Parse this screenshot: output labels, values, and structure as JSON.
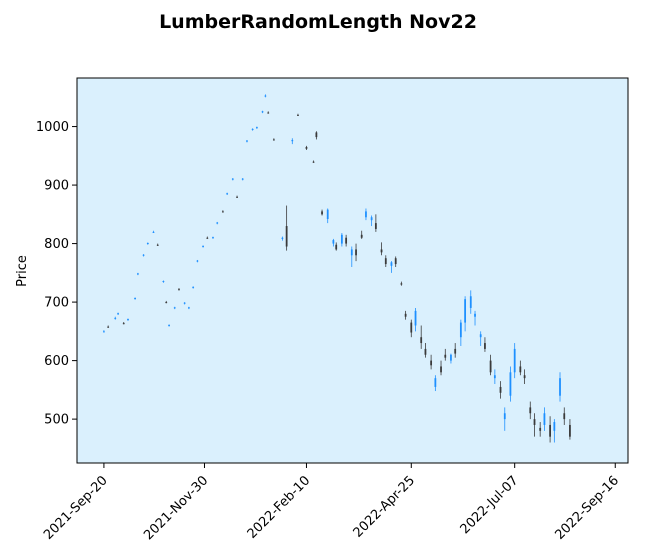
{
  "chart_data": {
    "type": "candlestick",
    "title": "LumberRandomLength Nov22",
    "xlabel": "",
    "ylabel": "Price",
    "ylim": [
      425,
      1083
    ],
    "xlim": [
      "2021-09-01",
      "2022-09-25"
    ],
    "x_ticks": [
      "2021-Sep-20",
      "2021-Nov-30",
      "2022-Feb-10",
      "2022-Apr-25",
      "2022-Jul-07",
      "2022-Sep-16"
    ],
    "y_ticks": [
      500,
      600,
      700,
      800,
      900,
      1000
    ],
    "grid": false,
    "colors": {
      "plot_background": "#daf0fd",
      "up": "#1e90ff",
      "down": "#3a3a3a"
    },
    "candles": [
      [
        "2021-09-20",
        650,
        652,
        648,
        650
      ],
      [
        "2021-09-23",
        658,
        660,
        656,
        657
      ],
      [
        "2021-09-28",
        672,
        675,
        670,
        673
      ],
      [
        "2021-09-30",
        680,
        682,
        678,
        681
      ],
      [
        "2021-10-04",
        664,
        666,
        662,
        663
      ],
      [
        "2021-10-07",
        670,
        672,
        668,
        671
      ],
      [
        "2021-10-12",
        706,
        708,
        704,
        707
      ],
      [
        "2021-10-14",
        748,
        750,
        746,
        749
      ],
      [
        "2021-10-18",
        780,
        782,
        778,
        781
      ],
      [
        "2021-10-21",
        800,
        802,
        798,
        801
      ],
      [
        "2021-10-25",
        820,
        822,
        818,
        820
      ],
      [
        "2021-10-28",
        798,
        800,
        796,
        797
      ],
      [
        "2021-11-01",
        735,
        737,
        733,
        736
      ],
      [
        "2021-11-03",
        700,
        702,
        698,
        699
      ],
      [
        "2021-11-05",
        660,
        662,
        658,
        661
      ],
      [
        "2021-11-09",
        690,
        692,
        688,
        691
      ],
      [
        "2021-11-12",
        722,
        724,
        720,
        721
      ],
      [
        "2021-11-16",
        698,
        700,
        696,
        699
      ],
      [
        "2021-11-19",
        690,
        692,
        688,
        691
      ],
      [
        "2021-11-22",
        725,
        727,
        723,
        726
      ],
      [
        "2021-11-25",
        770,
        772,
        768,
        771
      ],
      [
        "2021-11-29",
        795,
        797,
        793,
        796
      ],
      [
        "2021-12-02",
        810,
        812,
        808,
        809
      ],
      [
        "2021-12-06",
        810,
        812,
        808,
        811
      ],
      [
        "2021-12-09",
        835,
        837,
        833,
        836
      ],
      [
        "2021-12-13",
        855,
        857,
        853,
        854
      ],
      [
        "2021-12-16",
        885,
        887,
        883,
        886
      ],
      [
        "2021-12-20",
        910,
        912,
        908,
        911
      ],
      [
        "2021-12-23",
        880,
        882,
        878,
        879
      ],
      [
        "2021-12-27",
        910,
        912,
        908,
        911
      ],
      [
        "2021-12-30",
        975,
        977,
        973,
        976
      ],
      [
        "2022-01-03",
        995,
        997,
        993,
        996
      ],
      [
        "2022-01-06",
        998,
        1000,
        996,
        999
      ],
      [
        "2022-01-10",
        1025,
        1027,
        1023,
        1026
      ],
      [
        "2022-01-12",
        1052,
        1055,
        1050,
        1053
      ],
      [
        "2022-01-14",
        1024,
        1026,
        1022,
        1023
      ],
      [
        "2022-01-18",
        978,
        980,
        976,
        977
      ],
      [
        "2022-01-24",
        808,
        812,
        805,
        810
      ],
      [
        "2022-01-27",
        830,
        865,
        788,
        795
      ],
      [
        "2022-01-31",
        975,
        980,
        970,
        977
      ],
      [
        "2022-02-04",
        1020,
        1022,
        1018,
        1019
      ],
      [
        "2022-02-10",
        965,
        967,
        960,
        962
      ],
      [
        "2022-02-15",
        940,
        942,
        938,
        939
      ],
      [
        "2022-02-17",
        990,
        992,
        978,
        982
      ],
      [
        "2022-02-21",
        855,
        858,
        848,
        850
      ],
      [
        "2022-02-25",
        842,
        860,
        835,
        858
      ],
      [
        "2022-03-01",
        800,
        808,
        795,
        806
      ],
      [
        "2022-03-03",
        798,
        802,
        788,
        790
      ],
      [
        "2022-03-07",
        800,
        818,
        795,
        815
      ],
      [
        "2022-03-10",
        810,
        815,
        795,
        800
      ],
      [
        "2022-03-14",
        780,
        795,
        760,
        790
      ],
      [
        "2022-03-17",
        790,
        800,
        770,
        780
      ],
      [
        "2022-03-21",
        815,
        822,
        808,
        810
      ],
      [
        "2022-03-24",
        845,
        860,
        840,
        855
      ],
      [
        "2022-03-28",
        840,
        848,
        830,
        845
      ],
      [
        "2022-03-31",
        835,
        850,
        820,
        825
      ],
      [
        "2022-04-04",
        790,
        802,
        780,
        785
      ],
      [
        "2022-04-07",
        775,
        780,
        760,
        765
      ],
      [
        "2022-04-11",
        762,
        770,
        750,
        768
      ],
      [
        "2022-04-14",
        775,
        778,
        760,
        765
      ],
      [
        "2022-04-18",
        732,
        735,
        728,
        730
      ],
      [
        "2022-04-21",
        680,
        685,
        670,
        675
      ],
      [
        "2022-04-25",
        665,
        670,
        640,
        648
      ],
      [
        "2022-04-28",
        660,
        690,
        650,
        685
      ],
      [
        "2022-05-02",
        640,
        660,
        620,
        630
      ],
      [
        "2022-05-05",
        620,
        630,
        605,
        610
      ],
      [
        "2022-05-09",
        600,
        610,
        585,
        592
      ],
      [
        "2022-05-12",
        555,
        575,
        548,
        570
      ],
      [
        "2022-05-16",
        590,
        600,
        575,
        580
      ],
      [
        "2022-05-19",
        610,
        620,
        600,
        605
      ],
      [
        "2022-05-23",
        600,
        612,
        595,
        610
      ],
      [
        "2022-05-26",
        620,
        630,
        605,
        612
      ],
      [
        "2022-05-30",
        640,
        670,
        625,
        665
      ],
      [
        "2022-06-02",
        665,
        710,
        650,
        705
      ],
      [
        "2022-06-06",
        690,
        720,
        680,
        710
      ],
      [
        "2022-06-09",
        675,
        685,
        660,
        680
      ],
      [
        "2022-06-13",
        640,
        650,
        625,
        645
      ],
      [
        "2022-06-16",
        630,
        640,
        615,
        620
      ],
      [
        "2022-06-20",
        600,
        610,
        575,
        580
      ],
      [
        "2022-06-23",
        570,
        585,
        560,
        575
      ],
      [
        "2022-06-27",
        555,
        565,
        535,
        545
      ],
      [
        "2022-06-30",
        500,
        520,
        480,
        510
      ],
      [
        "2022-07-04",
        540,
        590,
        530,
        580
      ],
      [
        "2022-07-07",
        580,
        630,
        570,
        620
      ],
      [
        "2022-07-11",
        590,
        600,
        575,
        580
      ],
      [
        "2022-07-14",
        575,
        585,
        560,
        570
      ],
      [
        "2022-07-18",
        520,
        530,
        500,
        510
      ],
      [
        "2022-07-21",
        500,
        510,
        470,
        490
      ],
      [
        "2022-07-25",
        485,
        495,
        470,
        480
      ],
      [
        "2022-07-28",
        490,
        520,
        480,
        510
      ],
      [
        "2022-08-01",
        490,
        505,
        460,
        470
      ],
      [
        "2022-08-04",
        480,
        500,
        460,
        495
      ],
      [
        "2022-08-08",
        540,
        580,
        530,
        570
      ],
      [
        "2022-08-11",
        510,
        520,
        490,
        500
      ],
      [
        "2022-08-15",
        490,
        500,
        465,
        470
      ]
    ]
  }
}
